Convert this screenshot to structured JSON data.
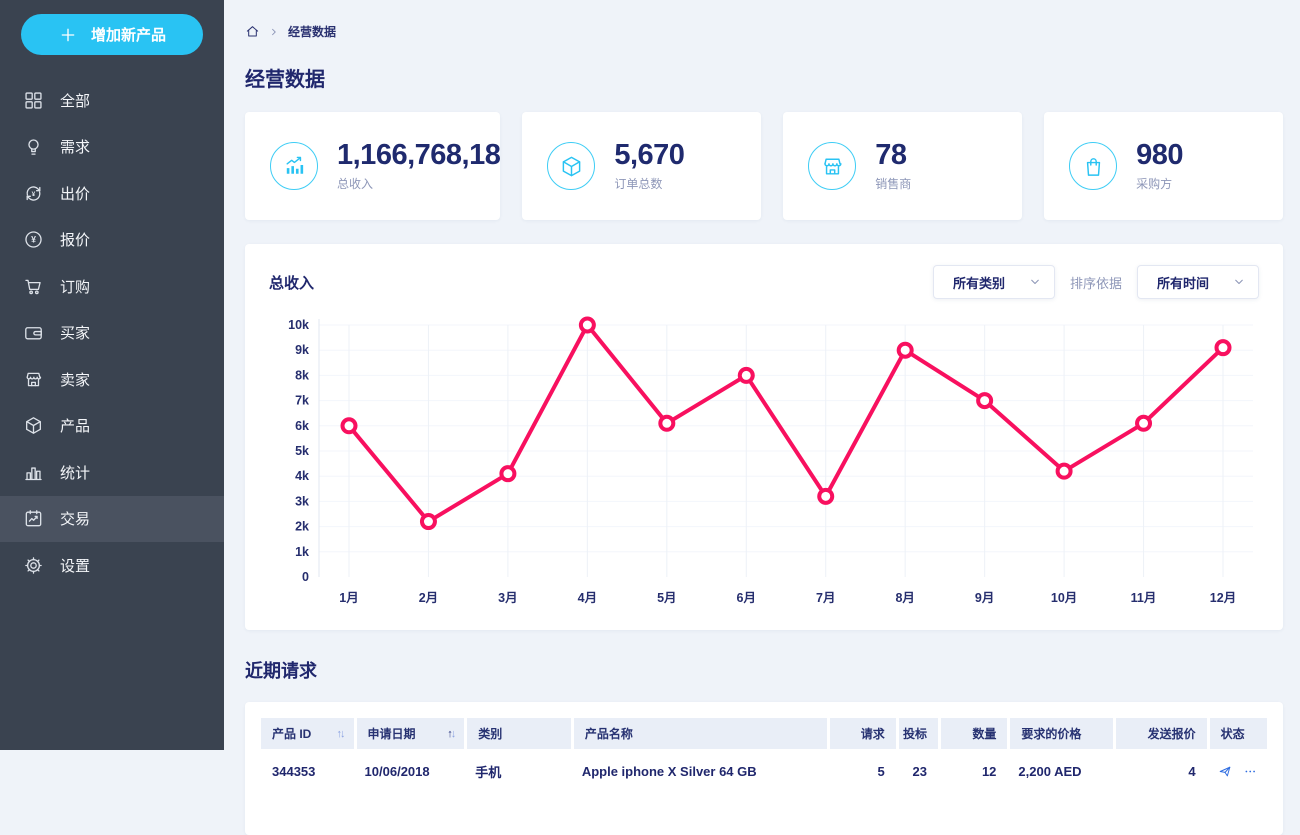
{
  "sidebar": {
    "add_button": "增加新产品",
    "items": [
      {
        "id": "all",
        "label": "全部",
        "icon": "grid",
        "active": false
      },
      {
        "id": "demand",
        "label": "需求",
        "icon": "bulb",
        "active": false
      },
      {
        "id": "bid",
        "label": "出价",
        "icon": "refresh-yen",
        "active": false
      },
      {
        "id": "quote",
        "label": "报价",
        "icon": "yen-circle",
        "active": false
      },
      {
        "id": "order",
        "label": "订购",
        "icon": "cart",
        "active": false
      },
      {
        "id": "buyer",
        "label": "买家",
        "icon": "wallet",
        "active": false
      },
      {
        "id": "seller",
        "label": "卖家",
        "icon": "store",
        "active": false
      },
      {
        "id": "product",
        "label": "产品",
        "icon": "package",
        "active": false
      },
      {
        "id": "stats",
        "label": "统计",
        "icon": "bar-chart",
        "active": false
      },
      {
        "id": "trade",
        "label": "交易",
        "icon": "calendar-trend",
        "active": true
      },
      {
        "id": "settings",
        "label": "设置",
        "icon": "gear",
        "active": false
      }
    ]
  },
  "breadcrumb": {
    "home_icon": "home-icon",
    "current": "经营数据"
  },
  "page_title": "经营数据",
  "stats": [
    {
      "value": "1,166,768,18",
      "label": "总收入",
      "icon": "chart-growth"
    },
    {
      "value": "5,670",
      "label": "订单总数",
      "icon": "cube"
    },
    {
      "value": "78",
      "label": "销售商",
      "icon": "store"
    },
    {
      "value": "980",
      "label": "采购方",
      "icon": "shopping-bag"
    }
  ],
  "revenue_chart": {
    "title": "总收入",
    "category_filter": "所有类别",
    "sort_label": "排序依据",
    "time_filter": "所有时间"
  },
  "chart_data": {
    "type": "line",
    "title": "总收入",
    "categories": [
      "1月",
      "2月",
      "3月",
      "4月",
      "5月",
      "6月",
      "7月",
      "8月",
      "9月",
      "10月",
      "11月",
      "12月"
    ],
    "values": [
      6000,
      2200,
      4100,
      10000,
      6100,
      8000,
      3200,
      9000,
      7000,
      4200,
      6100,
      9100
    ],
    "xlabel": "",
    "ylabel": "",
    "ylim": [
      0,
      10000
    ],
    "ytick_labels": [
      "0",
      "1k",
      "2k",
      "3k",
      "4k",
      "5k",
      "6k",
      "7k",
      "8k",
      "9k",
      "10k"
    ],
    "grid": true,
    "legend_position": "none",
    "line_color": "#f8105f",
    "marker": "circle-open"
  },
  "recent_requests": {
    "title": "近期请求",
    "columns": [
      {
        "label": "产品 ID",
        "sort": "inactive",
        "align": "left"
      },
      {
        "label": "申请日期",
        "sort": "asc",
        "align": "left"
      },
      {
        "label": "类别",
        "sort": "none",
        "align": "left"
      },
      {
        "label": "产品名称",
        "sort": "none",
        "align": "left"
      },
      {
        "label": "请求",
        "sort": "none",
        "align": "right"
      },
      {
        "label": "投标",
        "sort": "none",
        "align": "right"
      },
      {
        "label": "数量",
        "sort": "none",
        "align": "right"
      },
      {
        "label": "要求的价格",
        "sort": "none",
        "align": "left"
      },
      {
        "label": "发送报价",
        "sort": "none",
        "align": "right"
      },
      {
        "label": "状态",
        "sort": "none",
        "align": "left"
      }
    ],
    "rows": [
      {
        "cells": [
          "344353",
          "10/06/2018",
          "手机",
          "Apple iphone X Silver 64 GB",
          "5",
          "23",
          "12",
          "2,200 AED",
          "4"
        ],
        "status_icons": [
          "send-icon",
          "ellipsis-icon"
        ]
      }
    ]
  },
  "colors": {
    "accent_cyan": "#29c3f3",
    "sidebar_bg": "#3a4350",
    "sidebar_active_bg": "#4a5260",
    "navy_text": "#20276d",
    "muted_text": "#8e97b8",
    "chart_line": "#f8105f",
    "table_header_bg": "#e9eef7",
    "action_blue": "#2e6ce0",
    "page_bg": "#eff3f9"
  }
}
